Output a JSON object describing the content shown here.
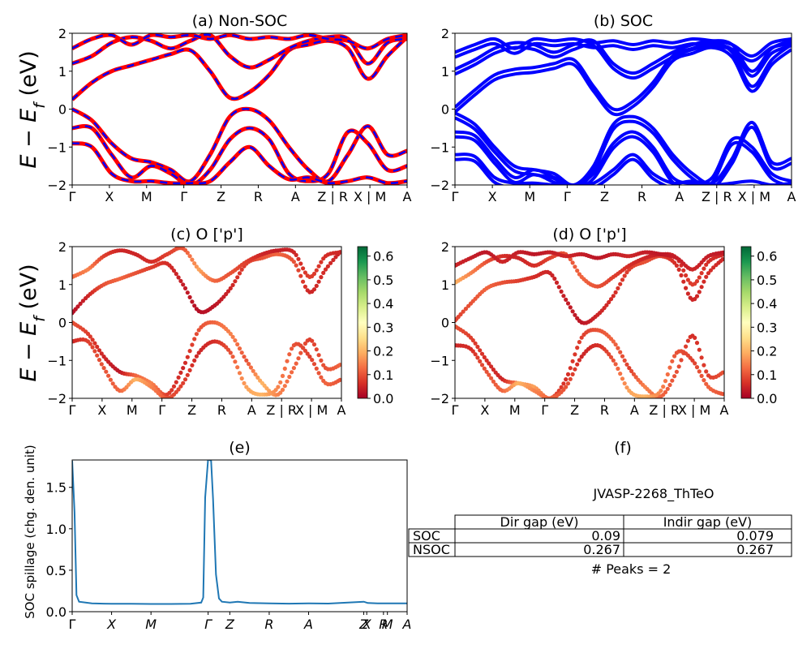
{
  "kpath_labels": [
    "Γ",
    "X",
    "M",
    "Γ",
    "Z",
    "R",
    "A",
    "Z | R",
    "X | M",
    "A"
  ],
  "spillage_kpath_labels": [
    "Γ",
    "X",
    "M",
    "Γ",
    "Z",
    "R",
    "A",
    "Z",
    "X",
    "R",
    "M",
    "A"
  ],
  "y_label": "E − E_f (eV)",
  "colors": {
    "nonsoc_up": "#ff0000",
    "nonsoc_dn": "#0000ff",
    "soc": "#0000ff",
    "spillage": "#1f77b4"
  },
  "chart_data": [
    {
      "id": "a",
      "type": "line",
      "title": "(a) Non-SOC",
      "ylabel": "E − E_f (eV)",
      "ylim": [
        -2,
        2
      ],
      "yticks": [
        -2,
        -1,
        0,
        1,
        2
      ],
      "xticks": [
        "Γ",
        "X",
        "M",
        "Γ",
        "Z",
        "R",
        "A",
        "Z | R",
        "X | M",
        "A"
      ],
      "k": [
        0,
        2,
        4,
        6,
        8,
        10,
        12,
        14,
        16,
        18
      ],
      "series": [
        {
          "values": [
            0.25,
            0.7,
            1.0,
            1.15,
            1.3,
            1.45,
            1.55,
            1.0,
            0.3,
            0.45,
            0.9,
            1.55,
            1.7,
            1.8,
            1.6,
            0.8,
            1.4,
            1.9
          ]
        },
        {
          "values": [
            1.2,
            1.4,
            1.75,
            1.9,
            1.8,
            1.6,
            1.8,
            1.95,
            1.4,
            1.1,
            1.3,
            1.6,
            1.8,
            1.9,
            1.85,
            1.2,
            1.75,
            1.85
          ]
        },
        {
          "values": [
            1.6,
            1.85,
            1.95,
            1.7,
            1.95,
            1.9,
            1.95,
            1.85,
            1.95,
            1.85,
            1.9,
            1.85,
            1.95,
            1.85,
            1.8,
            1.6,
            1.85,
            1.95
          ]
        },
        {
          "values": [
            0.0,
            -0.3,
            -0.9,
            -1.3,
            -1.4,
            -1.6,
            -1.9,
            -1.2,
            -0.2,
            0.0,
            -0.3,
            -1.0,
            -1.6,
            -1.9,
            -1.2,
            -0.45,
            -1.2,
            -1.1
          ]
        },
        {
          "values": [
            -0.5,
            -0.5,
            -1.2,
            -1.8,
            -1.5,
            -1.7,
            -2.0,
            -1.6,
            -0.8,
            -0.5,
            -0.8,
            -1.7,
            -1.9,
            -1.7,
            -0.6,
            -0.9,
            -1.6,
            -1.5
          ]
        },
        {
          "values": [
            -0.9,
            -1.0,
            -1.7,
            -1.9,
            -1.9,
            -1.95,
            -1.95,
            -1.9,
            -1.4,
            -1.0,
            -1.5,
            -1.85,
            -1.8,
            -1.95,
            -1.9,
            -1.8,
            -1.95,
            -1.9
          ]
        }
      ]
    },
    {
      "id": "b",
      "type": "line",
      "title": "(b) SOC",
      "ylim": [
        -2,
        2
      ],
      "yticks": [
        -2,
        -1,
        0,
        1,
        2
      ],
      "xticks": [
        "Γ",
        "X",
        "M",
        "Γ",
        "Z",
        "R",
        "A",
        "Z | R",
        "X | M",
        "A"
      ],
      "k": [
        0,
        2,
        4,
        6,
        8,
        10,
        12,
        14,
        16,
        18
      ],
      "series": [
        {
          "values": [
            0.05,
            0.5,
            0.9,
            1.05,
            1.1,
            1.2,
            1.3,
            0.6,
            0.0,
            0.2,
            0.7,
            1.4,
            1.6,
            1.75,
            1.5,
            0.6,
            1.3,
            1.7
          ]
        },
        {
          "values": [
            1.05,
            1.3,
            1.6,
            1.75,
            1.7,
            1.5,
            1.7,
            1.8,
            1.2,
            0.95,
            1.2,
            1.5,
            1.7,
            1.8,
            1.7,
            1.0,
            1.6,
            1.8
          ]
        },
        {
          "values": [
            1.5,
            1.7,
            1.85,
            1.6,
            1.85,
            1.8,
            1.85,
            1.75,
            1.8,
            1.7,
            1.8,
            1.75,
            1.85,
            1.8,
            1.7,
            1.4,
            1.75,
            1.85
          ]
        },
        {
          "values": [
            -0.1,
            -0.4,
            -1.0,
            -1.5,
            -1.6,
            -1.7,
            -2.0,
            -1.5,
            -0.4,
            -0.2,
            -0.5,
            -1.2,
            -1.7,
            -1.95,
            -1.3,
            -0.35,
            -1.4,
            -1.3
          ]
        },
        {
          "values": [
            -0.6,
            -0.7,
            -1.3,
            -1.8,
            -1.6,
            -1.8,
            -2.0,
            -1.7,
            -0.9,
            -0.6,
            -1.0,
            -1.8,
            -1.95,
            -1.8,
            -0.8,
            -1.0,
            -1.7,
            -1.9
          ]
        },
        {
          "values": [
            -1.2,
            -1.25,
            -1.8,
            -1.95,
            -1.95,
            -2.0,
            -2.0,
            -1.95,
            -1.6,
            -1.2,
            -1.7,
            -1.95,
            -1.9,
            -2.0,
            -1.95,
            -1.9,
            -2.0,
            -1.95
          ]
        }
      ]
    },
    {
      "id": "c",
      "type": "scatter",
      "title": "(c)  O ['p']",
      "ylabel": "E − E_f (eV)",
      "ylim": [
        -2,
        2
      ],
      "yticks": [
        -2,
        -1,
        0,
        1,
        2
      ],
      "xticks": [
        "Γ",
        "X",
        "M",
        "Γ",
        "Z",
        "R",
        "A",
        "Z | R",
        "X | M",
        "A"
      ],
      "colorbar": {
        "min": 0.0,
        "max": 0.64,
        "ticks": [
          "0.0",
          "0.1",
          "0.2",
          "0.3",
          "0.4",
          "0.5",
          "0.6"
        ],
        "colormap": "RdYlGn"
      },
      "k": [
        0,
        2,
        4,
        6,
        8,
        10,
        12,
        14,
        16,
        18
      ],
      "series": [
        {
          "values": [
            0.25,
            0.7,
            1.0,
            1.15,
            1.3,
            1.45,
            1.55,
            1.0,
            0.3,
            0.45,
            0.9,
            1.55,
            1.7,
            1.8,
            1.6,
            0.8,
            1.4,
            1.9
          ],
          "weight": [
            0.02,
            0.05,
            0.1,
            0.12,
            0.1,
            0.08,
            0.06,
            0.04,
            0.02,
            0.03,
            0.05,
            0.08,
            0.1,
            0.12,
            0.1,
            0.05,
            0.06,
            0.04
          ]
        },
        {
          "values": [
            1.2,
            1.4,
            1.75,
            1.9,
            1.8,
            1.6,
            1.8,
            1.95,
            1.4,
            1.1,
            1.3,
            1.6,
            1.8,
            1.9,
            1.85,
            1.2,
            1.75,
            1.85
          ],
          "weight": [
            0.12,
            0.15,
            0.08,
            0.05,
            0.05,
            0.06,
            0.08,
            0.1,
            0.18,
            0.12,
            0.1,
            0.08,
            0.05,
            0.04,
            0.05,
            0.08,
            0.06,
            0.05
          ]
        },
        {
          "values": [
            0.0,
            -0.3,
            -0.9,
            -1.3,
            -1.4,
            -1.6,
            -1.9,
            -1.2,
            -0.2,
            0.0,
            -0.3,
            -1.0,
            -1.6,
            -1.9,
            -1.2,
            -0.45,
            -1.2,
            -1.1
          ],
          "weight": [
            0.1,
            0.08,
            0.05,
            0.03,
            0.12,
            0.15,
            0.08,
            0.05,
            0.1,
            0.12,
            0.15,
            0.1,
            0.2,
            0.15,
            0.12,
            0.08,
            0.1,
            0.12
          ]
        },
        {
          "values": [
            -0.5,
            -0.5,
            -1.2,
            -1.8,
            -1.5,
            -1.7,
            -2.0,
            -1.6,
            -0.8,
            -0.5,
            -0.8,
            -1.7,
            -1.9,
            -1.7,
            -0.6,
            -0.9,
            -1.6,
            -1.5
          ],
          "weight": [
            0.05,
            0.08,
            0.1,
            0.12,
            0.2,
            0.15,
            0.1,
            0.08,
            0.05,
            0.06,
            0.1,
            0.18,
            0.2,
            0.15,
            0.1,
            0.08,
            0.12,
            0.1
          ]
        }
      ]
    },
    {
      "id": "d",
      "type": "scatter",
      "title": "(d) O ['p']",
      "ylim": [
        -2,
        2
      ],
      "yticks": [
        -2,
        -1,
        0,
        1,
        2
      ],
      "xticks": [
        "Γ",
        "X",
        "M",
        "Γ",
        "Z",
        "R",
        "A",
        "Z | R",
        "X | M",
        "A"
      ],
      "colorbar": {
        "min": 0.0,
        "max": 0.64,
        "ticks": [
          "0.0",
          "0.1",
          "0.2",
          "0.3",
          "0.4",
          "0.5",
          "0.6"
        ],
        "colormap": "RdYlGn"
      },
      "k": [
        0,
        2,
        4,
        6,
        8,
        10,
        12,
        14,
        16,
        18
      ],
      "series": [
        {
          "values": [
            0.05,
            0.5,
            0.9,
            1.05,
            1.1,
            1.2,
            1.3,
            0.6,
            0.0,
            0.2,
            0.7,
            1.4,
            1.6,
            1.75,
            1.5,
            0.6,
            1.3,
            1.7
          ],
          "weight": [
            0.08,
            0.1,
            0.12,
            0.1,
            0.08,
            0.06,
            0.05,
            0.04,
            0.03,
            0.05,
            0.06,
            0.08,
            0.1,
            0.08,
            0.06,
            0.05,
            0.06,
            0.05
          ]
        },
        {
          "values": [
            1.05,
            1.3,
            1.6,
            1.75,
            1.7,
            1.5,
            1.7,
            1.8,
            1.2,
            0.95,
            1.2,
            1.5,
            1.7,
            1.8,
            1.7,
            1.0,
            1.6,
            1.8
          ],
          "weight": [
            0.2,
            0.15,
            0.1,
            0.06,
            0.05,
            0.06,
            0.08,
            0.1,
            0.12,
            0.1,
            0.08,
            0.06,
            0.05,
            0.04,
            0.05,
            0.08,
            0.06,
            0.05
          ]
        },
        {
          "values": [
            1.5,
            1.7,
            1.85,
            1.6,
            1.85,
            1.8,
            1.85,
            1.75,
            1.8,
            1.7,
            1.8,
            1.75,
            1.85,
            1.8,
            1.7,
            1.4,
            1.75,
            1.85
          ],
          "weight": [
            0.05,
            0.04,
            0.03,
            0.05,
            0.04,
            0.03,
            0.04,
            0.05,
            0.04,
            0.03,
            0.04,
            0.05,
            0.04,
            0.03,
            0.04,
            0.05,
            0.04,
            0.03
          ]
        },
        {
          "values": [
            -0.1,
            -0.4,
            -1.0,
            -1.5,
            -1.6,
            -1.7,
            -2.0,
            -1.5,
            -0.4,
            -0.2,
            -0.5,
            -1.2,
            -1.7,
            -1.95,
            -1.3,
            -0.35,
            -1.4,
            -1.3
          ],
          "weight": [
            0.1,
            0.08,
            0.06,
            0.05,
            0.15,
            0.18,
            0.1,
            0.06,
            0.08,
            0.1,
            0.12,
            0.08,
            0.15,
            0.12,
            0.1,
            0.06,
            0.08,
            0.1
          ]
        },
        {
          "values": [
            -0.6,
            -0.7,
            -1.3,
            -1.8,
            -1.6,
            -1.8,
            -2.0,
            -1.7,
            -0.9,
            -0.6,
            -1.0,
            -1.8,
            -1.95,
            -1.8,
            -0.8,
            -1.0,
            -1.7,
            -1.9
          ],
          "weight": [
            0.05,
            0.06,
            0.1,
            0.12,
            0.2,
            0.15,
            0.12,
            0.1,
            0.05,
            0.06,
            0.1,
            0.18,
            0.2,
            0.15,
            0.1,
            0.08,
            0.12,
            0.1
          ]
        }
      ]
    },
    {
      "id": "e",
      "type": "line",
      "title": "(e)",
      "ylabel": "SOC spillage (chg. den. unit)",
      "ylim": [
        0,
        1.83
      ],
      "yticks": [
        "0.0",
        "0.5",
        "1.0",
        "1.5"
      ],
      "xticks": [
        "Γ",
        "X",
        "M",
        "Γ",
        "Z",
        "R",
        "A",
        "Z",
        "X",
        "R",
        "M",
        "A"
      ],
      "xtick_k": [
        0,
        2,
        4,
        6.9,
        8,
        10,
        12,
        14.8,
        14.95,
        15.8,
        16,
        17
      ],
      "k": [
        0,
        0.12,
        0.22,
        0.35,
        1,
        2,
        3,
        4,
        5,
        6,
        6.55,
        6.65,
        6.75,
        6.9,
        7.05,
        7.15,
        7.3,
        7.45,
        7.6,
        8,
        8.4,
        9,
        10,
        11,
        12,
        13,
        14,
        14.8,
        15,
        15.5,
        16,
        16.5,
        17
      ],
      "values": [
        1.82,
        1.2,
        0.2,
        0.12,
        0.1,
        0.095,
        0.095,
        0.093,
        0.093,
        0.095,
        0.11,
        0.17,
        1.38,
        1.84,
        1.82,
        1.36,
        0.45,
        0.16,
        0.12,
        0.11,
        0.12,
        0.105,
        0.1,
        0.097,
        0.1,
        0.098,
        0.11,
        0.12,
        0.105,
        0.1,
        0.1,
        0.1,
        0.1
      ]
    },
    {
      "id": "f",
      "type": "table",
      "title": "(f)",
      "caption": "JVASP-2268_ThTeO",
      "columns": [
        "Dir gap (eV)",
        "Indir gap (eV)"
      ],
      "rows": [
        {
          "label": "SOC",
          "values": [
            "0.09",
            "0.079"
          ]
        },
        {
          "label": "NSOC",
          "values": [
            "0.267",
            "0.267"
          ]
        }
      ],
      "footer": "# Peaks = 2"
    }
  ]
}
